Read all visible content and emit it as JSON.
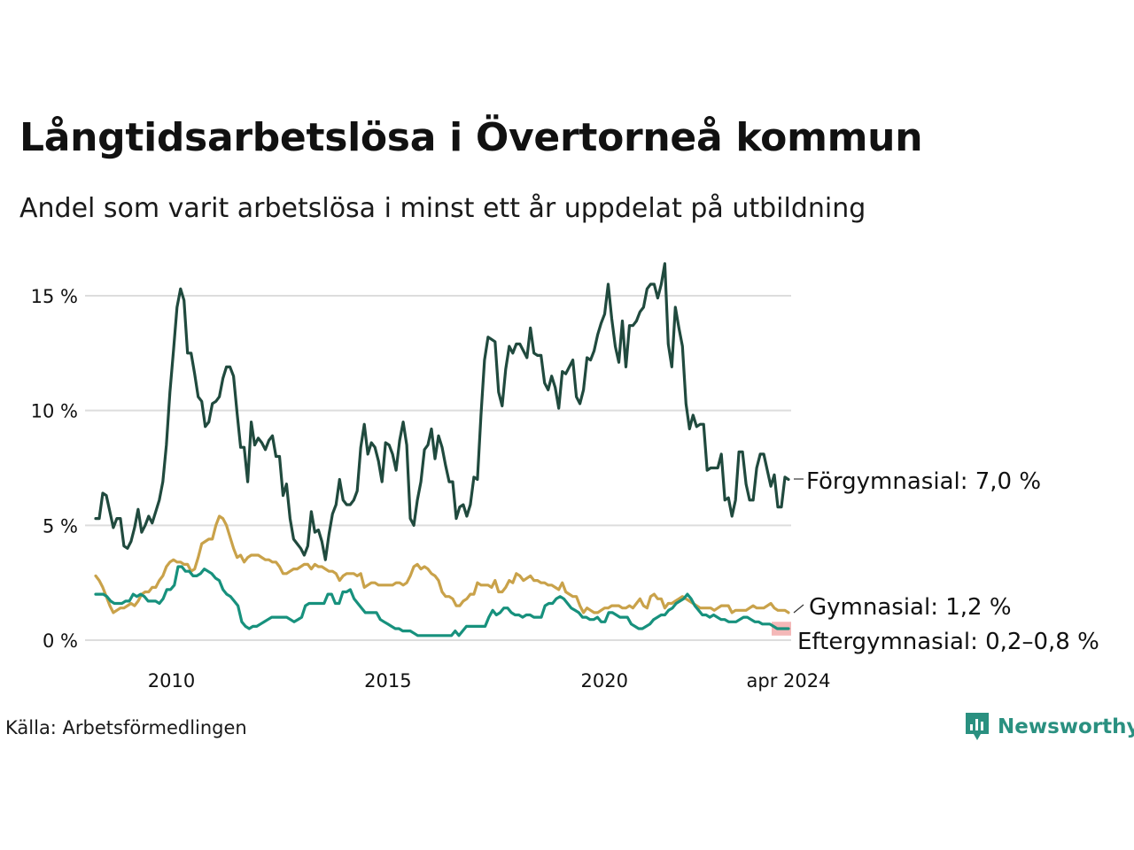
{
  "header": {
    "title": "Långtidsarbetslösa i Övertorneå kommun",
    "subtitle": "Andel som varit arbetslösa i minst ett år uppdelat på utbildning"
  },
  "footer": {
    "source": "Källa: Arbetsförmedlingen",
    "brand": "Newsworthy"
  },
  "colors": {
    "forgymnasial": "#204a3e",
    "gymnasial": "#c9a24a",
    "eftergymnasial": "#17917d",
    "eftergymnasial_band": "#f4b8b8",
    "grid": "#dddddd",
    "brand": "#2a9080"
  },
  "chart_data": {
    "type": "line",
    "title": "Långtidsarbetslösa i Övertorneå kommun",
    "subtitle": "Andel som varit arbetslösa i minst ett år uppdelat på utbildning",
    "xlabel": "",
    "ylabel": "",
    "x_start": 2008.25,
    "x_end": 2024.25,
    "xlim": [
      2008.2,
      2024.3
    ],
    "ylim": [
      0,
      16.5
    ],
    "grid": true,
    "y_ticks": [
      {
        "value": 0,
        "label": "0 %"
      },
      {
        "value": 5,
        "label": "5 %"
      },
      {
        "value": 10,
        "label": "10 %"
      },
      {
        "value": 15,
        "label": "15 %"
      }
    ],
    "x_ticks": [
      {
        "value": 2010,
        "label": "2010"
      },
      {
        "value": 2015,
        "label": "2015"
      },
      {
        "value": 2020,
        "label": "2020"
      },
      {
        "value": 2024.25,
        "label": "apr 2024"
      }
    ],
    "series": [
      {
        "name": "Förgymnasial",
        "end_label": "Förgymnasial: 7,0 %",
        "values": [
          5.3,
          5.3,
          6.4,
          6.3,
          5.6,
          4.9,
          5.3,
          5.3,
          4.1,
          4.0,
          4.3,
          4.9,
          5.7,
          4.7,
          5.0,
          5.4,
          5.1,
          5.6,
          6.1,
          6.9,
          8.5,
          10.8,
          12.6,
          14.5,
          15.3,
          14.8,
          12.5,
          12.5,
          11.6,
          10.6,
          10.4,
          9.3,
          9.5,
          10.3,
          10.4,
          10.6,
          11.4,
          11.9,
          11.9,
          11.5,
          9.9,
          8.4,
          8.4,
          6.9,
          9.5,
          8.5,
          8.8,
          8.6,
          8.3,
          8.7,
          8.9,
          8.0,
          8.0,
          6.3,
          6.8,
          5.3,
          4.4,
          4.2,
          4.0,
          3.7,
          4.1,
          5.6,
          4.7,
          4.8,
          4.3,
          3.5,
          4.6,
          5.5,
          5.9,
          7.0,
          6.1,
          5.9,
          5.9,
          6.1,
          6.5,
          8.4,
          9.4,
          8.1,
          8.6,
          8.4,
          7.8,
          6.9,
          8.6,
          8.5,
          8.1,
          7.4,
          8.7,
          9.5,
          8.5,
          5.3,
          5.0,
          6.1,
          6.9,
          8.3,
          8.5,
          9.2,
          7.9,
          8.9,
          8.4,
          7.6,
          6.9,
          6.9,
          5.3,
          5.8,
          5.9,
          5.4,
          5.9,
          7.1,
          7.0,
          9.8,
          12.2,
          13.2,
          13.1,
          13.0,
          10.8,
          10.2,
          11.8,
          12.8,
          12.5,
          12.9,
          12.9,
          12.6,
          12.3,
          13.6,
          12.5,
          12.4,
          12.4,
          11.2,
          10.9,
          11.5,
          11.0,
          10.1,
          11.7,
          11.6,
          11.9,
          12.2,
          10.6,
          10.3,
          10.9,
          12.3,
          12.2,
          12.6,
          13.3,
          13.8,
          14.2,
          15.5,
          14.0,
          12.8,
          12.1,
          13.9,
          11.9,
          13.7,
          13.7,
          13.9,
          14.3,
          14.5,
          15.3,
          15.5,
          15.5,
          14.9,
          15.5,
          16.4,
          12.9,
          11.9,
          14.5,
          13.6,
          12.8,
          10.3,
          9.2,
          9.8,
          9.3,
          9.4,
          9.4,
          7.4,
          7.5,
          7.5,
          7.5,
          8.1,
          6.1,
          6.2,
          5.4,
          6.1,
          8.2,
          8.2,
          6.8,
          6.1,
          6.1,
          7.5,
          8.1,
          8.1,
          7.4,
          6.7,
          7.2,
          5.8,
          5.8,
          7.1,
          7.0
        ]
      },
      {
        "name": "Gymnasial",
        "end_label": "Gymnasial: 1,2 %",
        "values": [
          2.8,
          2.6,
          2.3,
          1.9,
          1.5,
          1.2,
          1.3,
          1.4,
          1.4,
          1.5,
          1.6,
          1.5,
          1.7,
          2.0,
          2.1,
          2.1,
          2.3,
          2.3,
          2.6,
          2.8,
          3.2,
          3.4,
          3.5,
          3.4,
          3.4,
          3.3,
          3.3,
          3.0,
          3.1,
          3.6,
          4.2,
          4.3,
          4.4,
          4.4,
          5.0,
          5.4,
          5.3,
          5.0,
          4.5,
          4.0,
          3.6,
          3.7,
          3.4,
          3.6,
          3.7,
          3.7,
          3.7,
          3.6,
          3.5,
          3.5,
          3.4,
          3.4,
          3.2,
          2.9,
          2.9,
          3.0,
          3.1,
          3.1,
          3.2,
          3.3,
          3.3,
          3.1,
          3.3,
          3.2,
          3.2,
          3.1,
          3.0,
          3.0,
          2.9,
          2.6,
          2.8,
          2.9,
          2.9,
          2.9,
          2.8,
          2.9,
          2.3,
          2.4,
          2.5,
          2.5,
          2.4,
          2.4,
          2.4,
          2.4,
          2.4,
          2.5,
          2.5,
          2.4,
          2.5,
          2.8,
          3.2,
          3.3,
          3.1,
          3.2,
          3.1,
          2.9,
          2.8,
          2.6,
          2.1,
          1.9,
          1.9,
          1.8,
          1.5,
          1.5,
          1.7,
          1.8,
          2.0,
          2.0,
          2.5,
          2.4,
          2.4,
          2.4,
          2.3,
          2.6,
          2.1,
          2.1,
          2.3,
          2.6,
          2.5,
          2.9,
          2.8,
          2.6,
          2.7,
          2.8,
          2.6,
          2.6,
          2.5,
          2.5,
          2.4,
          2.4,
          2.3,
          2.2,
          2.5,
          2.1,
          2.0,
          1.9,
          1.9,
          1.5,
          1.2,
          1.4,
          1.3,
          1.2,
          1.2,
          1.3,
          1.4,
          1.4,
          1.5,
          1.5,
          1.5,
          1.4,
          1.4,
          1.5,
          1.4,
          1.6,
          1.8,
          1.5,
          1.4,
          1.9,
          2.0,
          1.8,
          1.8,
          1.4,
          1.6,
          1.6,
          1.7,
          1.8,
          1.9,
          1.8,
          1.7,
          1.6,
          1.5,
          1.4,
          1.4,
          1.4,
          1.4,
          1.3,
          1.4,
          1.5,
          1.5,
          1.5,
          1.2,
          1.3,
          1.3,
          1.3,
          1.3,
          1.4,
          1.5,
          1.4,
          1.4,
          1.4,
          1.5,
          1.6,
          1.4,
          1.3,
          1.3,
          1.3,
          1.2
        ]
      },
      {
        "name": "Eftergymnasial",
        "end_label": "Eftergymnasial: 0,2–0,8 %",
        "band": [
          0.2,
          0.8
        ],
        "values": [
          2.0,
          2.0,
          2.0,
          1.9,
          1.7,
          1.6,
          1.6,
          1.6,
          1.7,
          1.7,
          2.0,
          1.9,
          2.0,
          1.9,
          1.7,
          1.7,
          1.7,
          1.6,
          1.8,
          2.2,
          2.2,
          2.4,
          3.2,
          3.2,
          3.0,
          3.0,
          2.8,
          2.8,
          2.9,
          3.1,
          3.0,
          2.9,
          2.7,
          2.6,
          2.2,
          2.0,
          1.9,
          1.7,
          1.5,
          0.8,
          0.6,
          0.5,
          0.6,
          0.6,
          0.7,
          0.8,
          0.9,
          1.0,
          1.0,
          1.0,
          1.0,
          1.0,
          0.9,
          0.8,
          0.9,
          1.0,
          1.5,
          1.6,
          1.6,
          1.6,
          1.6,
          1.6,
          2.0,
          2.0,
          1.6,
          1.6,
          2.1,
          2.1,
          2.2,
          1.8,
          1.6,
          1.4,
          1.2,
          1.2,
          1.2,
          1.2,
          0.9,
          0.8,
          0.7,
          0.6,
          0.5,
          0.5,
          0.4,
          0.4,
          0.4,
          0.3,
          0.2,
          0.2,
          0.2,
          0.2,
          0.2,
          0.2,
          0.2,
          0.2,
          0.2,
          0.2,
          0.4,
          0.2,
          0.4,
          0.6,
          0.6,
          0.6,
          0.6,
          0.6,
          0.6,
          1.0,
          1.3,
          1.1,
          1.2,
          1.4,
          1.4,
          1.2,
          1.1,
          1.1,
          1.0,
          1.1,
          1.1,
          1.0,
          1.0,
          1.0,
          1.5,
          1.6,
          1.6,
          1.8,
          1.9,
          1.8,
          1.6,
          1.4,
          1.3,
          1.2,
          1.0,
          1.0,
          0.9,
          0.9,
          1.0,
          0.8,
          0.8,
          1.2,
          1.2,
          1.1,
          1.0,
          1.0,
          1.0,
          0.7,
          0.6,
          0.5,
          0.5,
          0.6,
          0.7,
          0.9,
          1.0,
          1.1,
          1.1,
          1.3,
          1.4,
          1.6,
          1.7,
          1.8,
          2.0,
          1.8,
          1.5,
          1.3,
          1.1,
          1.1,
          1.0,
          1.1,
          1.0,
          0.9,
          0.9,
          0.8,
          0.8,
          0.8,
          0.9,
          1.0,
          1.0,
          0.9,
          0.8,
          0.8,
          0.7,
          0.7,
          0.7,
          0.6,
          0.5,
          0.5,
          0.5,
          0.5
        ]
      }
    ]
  }
}
